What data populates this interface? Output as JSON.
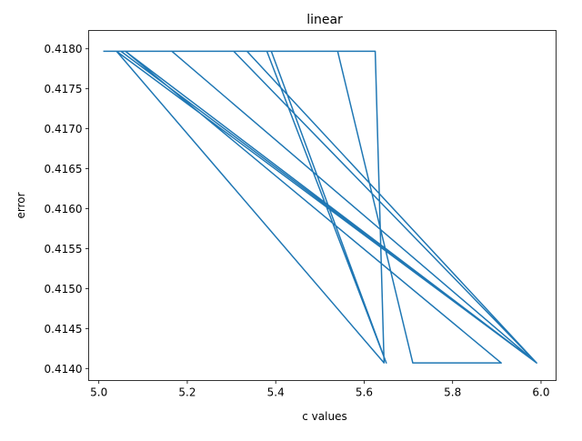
{
  "chart_data": {
    "type": "line",
    "title": "linear",
    "xlabel": "c values",
    "ylabel": "error",
    "xlim": [
      4.977,
      6.034
    ],
    "ylim": [
      0.41385,
      0.41823
    ],
    "grid": false,
    "xticks": [
      5.0,
      5.2,
      5.4,
      5.6,
      5.8,
      6.0
    ],
    "xtick_labels": [
      "5.0",
      "5.2",
      "5.4",
      "5.6",
      "5.8",
      "6.0"
    ],
    "yticks": [
      0.414,
      0.4145,
      0.415,
      0.4155,
      0.416,
      0.4165,
      0.417,
      0.4175,
      0.418
    ],
    "ytick_labels": [
      "0.4140",
      "0.4145",
      "0.4150",
      "0.4155",
      "0.4160",
      "0.4165",
      "0.4170",
      "0.4175",
      "0.4180"
    ],
    "series": [
      {
        "color": "#1f77b4",
        "x": [
          5.01,
          5.59,
          5.05,
          5.99,
          5.06,
          5.91,
          5.71,
          5.54,
          5.38,
          5.65,
          5.39,
          5.625,
          5.645,
          5.04,
          5.99,
          5.165,
          5.99,
          5.305,
          5.99,
          5.335
        ],
        "y": [
          0.41797,
          0.41797,
          0.41797,
          0.41407,
          0.41797,
          0.41407,
          0.41407,
          0.41797,
          0.41797,
          0.41407,
          0.41797,
          0.41797,
          0.41407,
          0.41797,
          0.41407,
          0.41797,
          0.41407,
          0.41797,
          0.41407,
          0.41797
        ]
      }
    ]
  }
}
